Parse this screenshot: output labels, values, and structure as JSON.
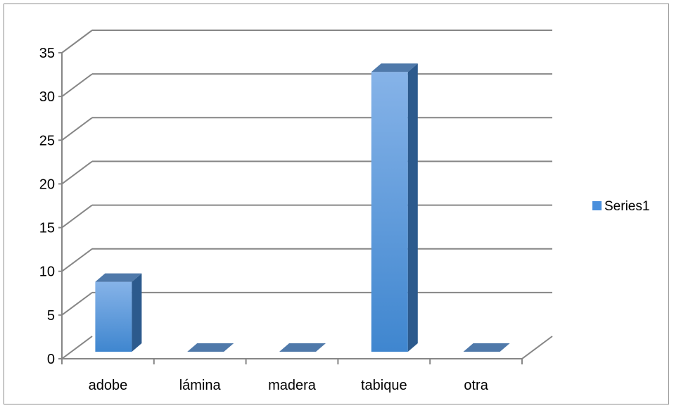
{
  "chart_data": {
    "type": "bar",
    "style": "3d-column",
    "categories": [
      "adobe",
      "lámina",
      "madera",
      "tabique",
      "otra"
    ],
    "series": [
      {
        "name": "Series1",
        "values": [
          8,
          0,
          0,
          32,
          0
        ]
      }
    ],
    "ylim": [
      0,
      35
    ],
    "yticks": [
      "0",
      "5",
      "10",
      "15",
      "20",
      "25",
      "30",
      "35"
    ],
    "grid": true,
    "legend": "right",
    "colors": {
      "bar_front_top": "#86b3e8",
      "bar_front_bottom": "#3f86cf",
      "bar_side": "#2c5a8d",
      "bar_top": "#4f79aa",
      "gridline": "#868686",
      "legend_swatch": "#4a8fdc"
    }
  }
}
